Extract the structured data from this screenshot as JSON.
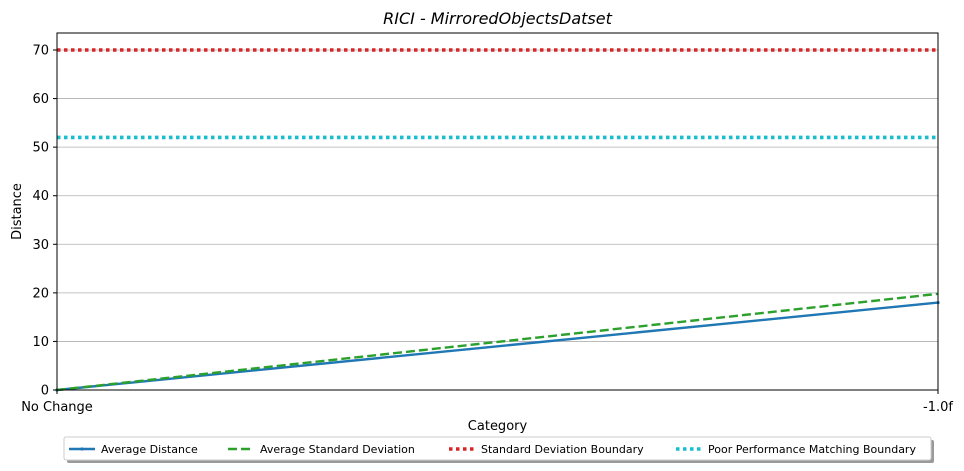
{
  "chart_data": {
    "type": "line",
    "title": "RICI - MirroredObjectsDatset",
    "xlabel": "Category",
    "ylabel": "Distance",
    "categories": [
      "No Change",
      "-1.0f"
    ],
    "ylim": [
      0,
      73.5
    ],
    "yticks": [
      0,
      10,
      20,
      30,
      40,
      50,
      60,
      70
    ],
    "grid": "y",
    "legend_position": "bottom-center",
    "series": [
      {
        "name": "Average Distance",
        "values": [
          0,
          18
        ],
        "color": "#1f77b4",
        "style": "solid",
        "marker": "dot"
      },
      {
        "name": "Average Standard Deviation",
        "values": [
          0,
          19.8
        ],
        "color": "#2ca02c",
        "style": "dashed"
      },
      {
        "name": "Standard Deviation Boundary",
        "values": [
          70,
          70
        ],
        "color": "#d62728",
        "style": "dotted"
      },
      {
        "name": "Poor Performance Matching Boundary",
        "values": [
          52,
          52
        ],
        "color": "#17becf",
        "style": "dotted"
      }
    ]
  }
}
